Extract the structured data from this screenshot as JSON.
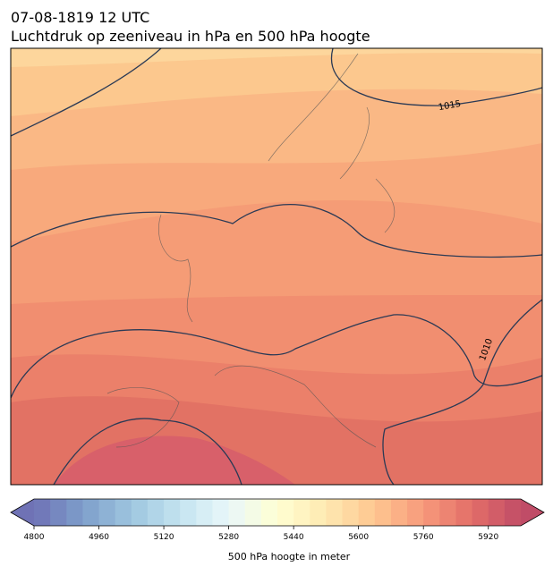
{
  "header": {
    "title": "07-08-1819 12 UTC",
    "subtitle": "Luchtdruk op zeeniveau in hPa en 500 hPa hoogte"
  },
  "map": {
    "contour_labels": [
      "1015",
      "1010"
    ]
  },
  "colorbar": {
    "label": "500 hPa hoogte in meter",
    "range": [
      4800,
      6000
    ],
    "ticks": [
      4800,
      4960,
      5120,
      5280,
      5440,
      5600,
      5760,
      5920
    ],
    "n_levels": 30,
    "extend": "both",
    "colormap": [
      "#6f72b5",
      "#7d9eca",
      "#9ec6df",
      "#c4e4f0",
      "#e9f7fa",
      "#ffffd2",
      "#fee9b1",
      "#fec690",
      "#f7997b",
      "#e36e68",
      "#c04c67"
    ]
  }
}
